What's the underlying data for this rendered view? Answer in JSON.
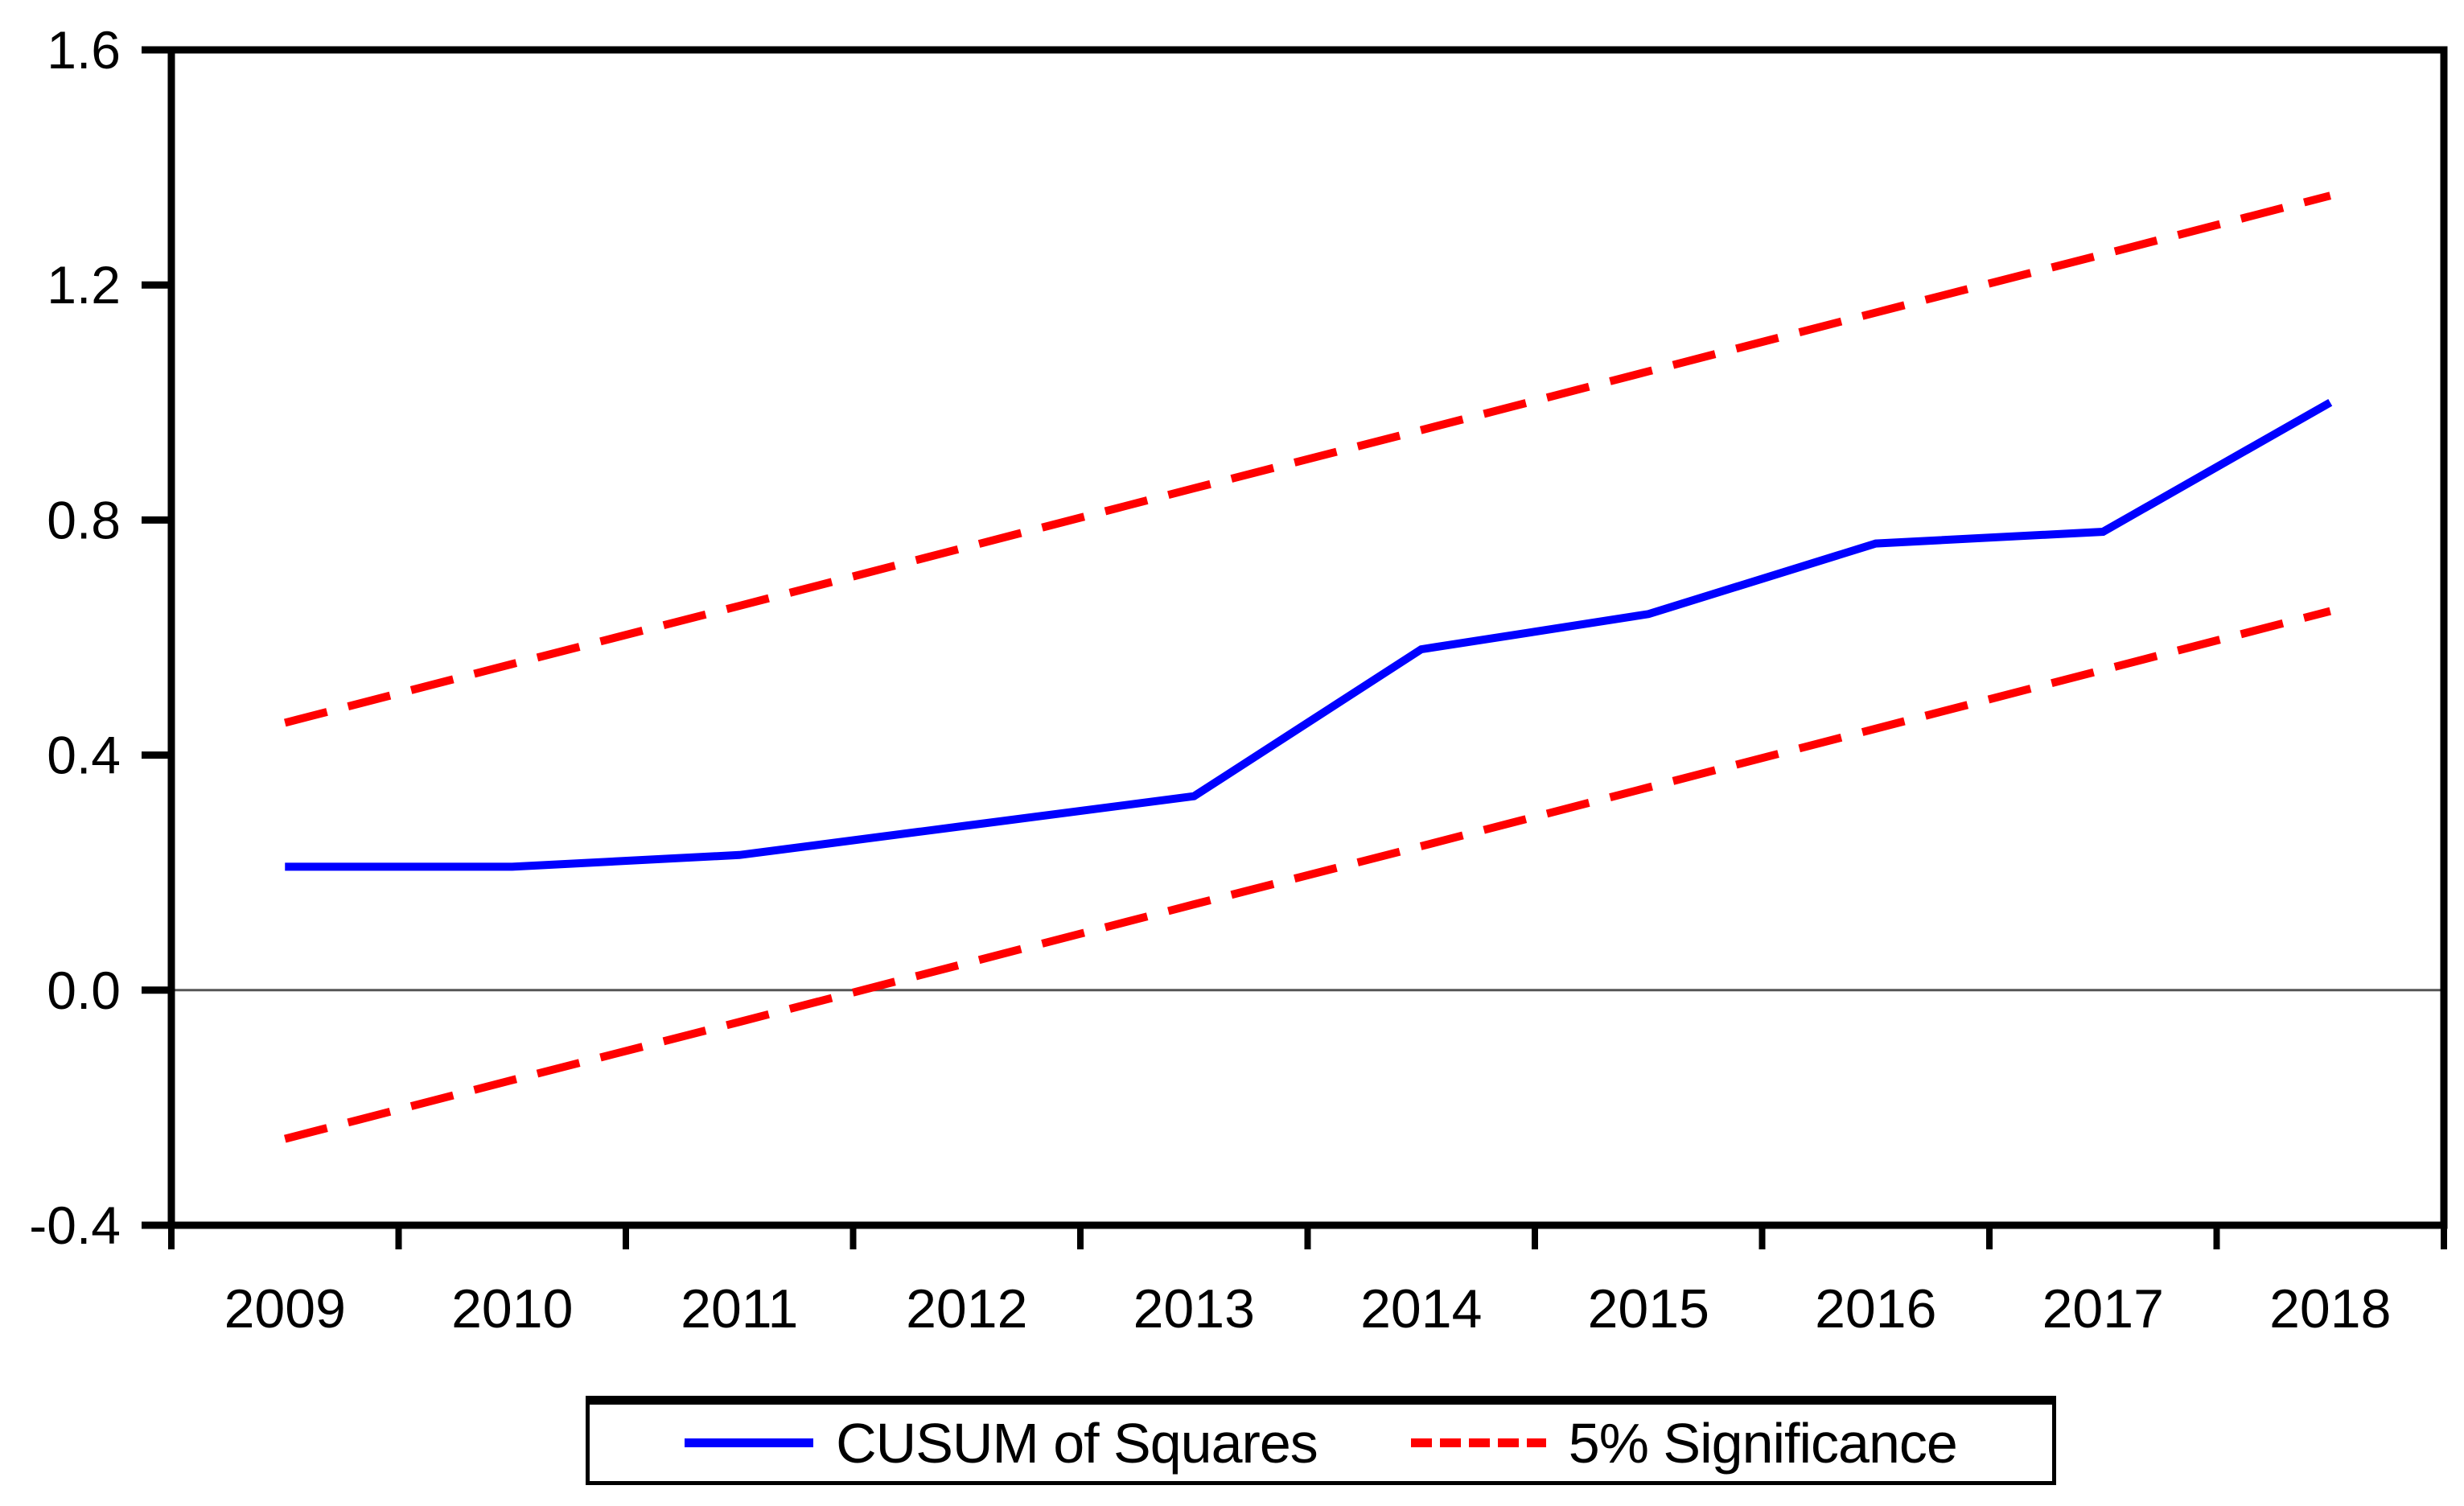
{
  "chart_data": {
    "type": "line",
    "title": "",
    "xlabel": "",
    "ylabel": "",
    "x": [
      2009,
      2010,
      2011,
      2012,
      2013,
      2014,
      2015,
      2016,
      2017,
      2018
    ],
    "xticklabels": [
      "2009",
      "2010",
      "2011",
      "2012",
      "2013",
      "2014",
      "2015",
      "2016",
      "2017",
      "2018"
    ],
    "yticks": [
      -0.4,
      0.0,
      0.4,
      0.8,
      1.2,
      1.6
    ],
    "yticklabels": [
      "-0.4",
      "0.0",
      "0.4",
      "0.8",
      "1.2",
      "1.6"
    ],
    "ylim": [
      -0.4,
      1.6
    ],
    "grid": "zero-line-only",
    "zero_line": true,
    "legend_position": "bottom",
    "series": [
      {
        "name": "CUSUM of Squares",
        "style": "solid",
        "color": "#0000ff",
        "values": [
          0.21,
          0.21,
          0.23,
          0.28,
          0.33,
          0.58,
          0.64,
          0.76,
          0.78,
          1.0
        ]
      },
      {
        "name": "5% Significance (upper bound)",
        "style": "dashed",
        "color": "#ff0000",
        "values": [
          0.455,
          0.555,
          0.654,
          0.754,
          0.854,
          0.953,
          1.053,
          1.153,
          1.252,
          1.352
        ]
      },
      {
        "name": "5% Significance (lower bound)",
        "style": "dashed",
        "color": "#ff0000",
        "values": [
          -0.253,
          -0.153,
          -0.054,
          0.046,
          0.146,
          0.245,
          0.345,
          0.445,
          0.545,
          0.645
        ]
      }
    ]
  },
  "legend": {
    "items": [
      {
        "label": "CUSUM of Squares",
        "color": "#0000ff",
        "style": "solid"
      },
      {
        "label": "5% Significance",
        "color": "#ff0000",
        "style": "dashed"
      }
    ]
  },
  "axis_colors": {
    "frame": "#000000",
    "tick": "#000000",
    "label": "#000000",
    "zero_line": "#555555"
  }
}
